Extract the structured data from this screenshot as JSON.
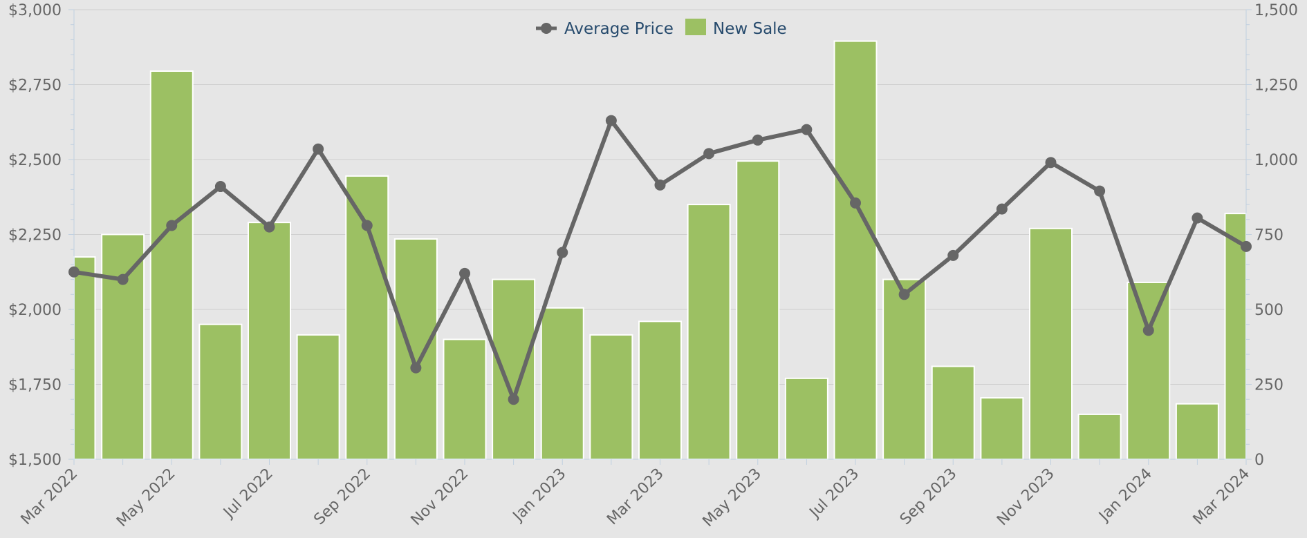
{
  "chart_data": {
    "type": "bar",
    "categories": [
      "Mar 2022",
      "Apr 2022",
      "May 2022",
      "Jun 2022",
      "Jul 2022",
      "Aug 2022",
      "Sep 2022",
      "Oct 2022",
      "Nov 2022",
      "Dec 2022",
      "Jan 2023",
      "Feb 2023",
      "Mar 2023",
      "Apr 2023",
      "May 2023",
      "Jun 2023",
      "Jul 2023",
      "Aug 2023",
      "Sep 2023",
      "Oct 2023",
      "Nov 2023",
      "Dec 2023",
      "Jan 2024",
      "Feb 2024",
      "Mar 2024"
    ],
    "x_tick_labels": [
      "Mar 2022",
      "May 2022",
      "Jul 2022",
      "Sep 2022",
      "Nov 2022",
      "Jan 2023",
      "Mar 2023",
      "May 2023",
      "Jul 2023",
      "Sep 2023",
      "Nov 2023",
      "Jan 2024",
      "Mar 2024"
    ],
    "series": [
      {
        "name": "New Sale",
        "type": "bar",
        "axis": "right",
        "color": "#9cc063",
        "values": [
          675,
          750,
          1295,
          450,
          790,
          415,
          945,
          735,
          400,
          600,
          505,
          415,
          460,
          850,
          995,
          270,
          1395,
          600,
          310,
          205,
          770,
          150,
          590,
          185,
          820
        ]
      },
      {
        "name": "Average Price",
        "type": "line",
        "axis": "left",
        "color": "#666666",
        "values": [
          2125,
          2100,
          2280,
          2410,
          2275,
          2535,
          2280,
          1805,
          2120,
          1700,
          2190,
          2630,
          2415,
          2520,
          2565,
          2600,
          2355,
          2050,
          2180,
          2335,
          2490,
          2395,
          1930,
          2305,
          2210
        ]
      }
    ],
    "y_left": {
      "ylim": [
        1500,
        3000
      ],
      "tick_labels": [
        "$1,500",
        "$1,750",
        "$2,000",
        "$2,250",
        "$2,500",
        "$2,750",
        "$3,000"
      ]
    },
    "y_right": {
      "ylim": [
        0,
        1500
      ],
      "tick_labels": [
        "0",
        "250",
        "500",
        "750",
        "1,000",
        "1,250",
        "1,500"
      ]
    },
    "legend": {
      "position": "top-center",
      "items": [
        "Average Price",
        "New Sale"
      ]
    },
    "grid": true,
    "background": "#e6e6e6"
  }
}
